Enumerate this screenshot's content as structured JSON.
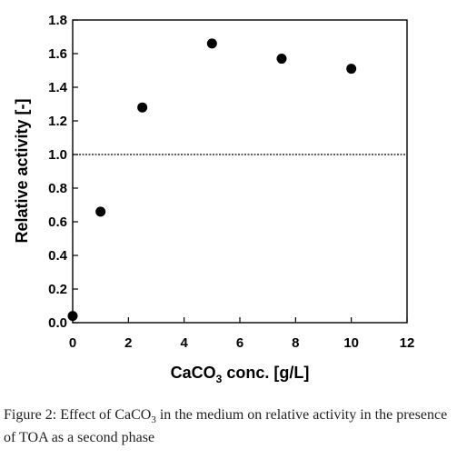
{
  "chart_data": {
    "type": "scatter",
    "title": "",
    "xlabel": {
      "pre": "CaCO",
      "sub": "3",
      "post": " conc. [g/L]"
    },
    "ylabel": "Relative activity [-]",
    "xlim": [
      0,
      12
    ],
    "ylim": [
      0,
      1.8
    ],
    "xticks": [
      "0",
      "2",
      "4",
      "6",
      "8",
      "10",
      "12"
    ],
    "yticks": [
      "0.0",
      "0.2",
      "0.4",
      "0.6",
      "0.8",
      "1.0",
      "1.2",
      "1.4",
      "1.6",
      "1.8"
    ],
    "reference_line": {
      "y": 1.0,
      "style": "dotted"
    },
    "grid": false,
    "points": [
      {
        "x": 0,
        "y": 0.04
      },
      {
        "x": 1,
        "y": 0.66
      },
      {
        "x": 2.5,
        "y": 1.28
      },
      {
        "x": 5,
        "y": 1.66
      },
      {
        "x": 7.5,
        "y": 1.57
      },
      {
        "x": 10,
        "y": 1.51
      }
    ],
    "marker_color": "#000000"
  },
  "caption": {
    "label": "Figure 2:",
    "text_pre": " Effect of CaCO",
    "text_sub": "3",
    "text_post": " in the medium on relative activity in the presence of TOA as a second phase"
  }
}
